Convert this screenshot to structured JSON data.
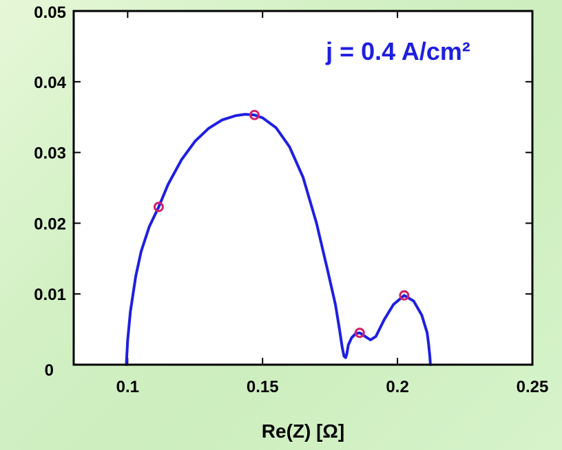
{
  "chart_data": {
    "type": "line",
    "xlabel": "Re(Z) [Ω]",
    "ylabel": "",
    "xlim": [
      0.08,
      0.25
    ],
    "ylim": [
      0,
      0.05
    ],
    "x_ticks": [
      0.1,
      0.15,
      0.2,
      0.25
    ],
    "x_tick_labels": [
      "0.1",
      "0.15",
      "0.2",
      "0.25"
    ],
    "y_ticks": [
      0,
      0.01,
      0.02,
      0.03,
      0.04,
      0.05
    ],
    "y_tick_labels": [
      "0",
      "0.01",
      "0.02",
      "0.03",
      "0.04",
      "0.05"
    ],
    "annotation": "j = 0.4 A/cm²",
    "grid": false,
    "colors": {
      "line": "#1f1fe0",
      "marker": "#d0206a",
      "annotation": "#1f1fe0",
      "plot_bg": "#ffffff",
      "axis": "#000000"
    },
    "series": [
      {
        "x": [
          0.0995,
          0.1,
          0.101,
          0.103,
          0.105,
          0.108,
          0.1115,
          0.115,
          0.12,
          0.125,
          0.13,
          0.135,
          0.14,
          0.1435,
          0.147,
          0.15,
          0.155,
          0.16,
          0.165,
          0.17,
          0.174,
          0.177,
          0.1785,
          0.1795,
          0.1802,
          0.1808,
          0.1812,
          0.1818,
          0.183,
          0.1845,
          0.186,
          0.188,
          0.19,
          0.192,
          0.195,
          0.1985,
          0.2025,
          0.206,
          0.209,
          0.211,
          0.2115,
          0.212,
          0.2122
        ],
        "y": [
          0,
          0.0035,
          0.0075,
          0.0125,
          0.016,
          0.0195,
          0.0223,
          0.0255,
          0.029,
          0.0316,
          0.0334,
          0.0346,
          0.0352,
          0.0354,
          0.0353,
          0.0349,
          0.0335,
          0.0308,
          0.0265,
          0.02,
          0.0135,
          0.0085,
          0.005,
          0.0025,
          0.0012,
          0.001,
          0.0015,
          0.0028,
          0.0038,
          0.0044,
          0.0045,
          0.004,
          0.0035,
          0.004,
          0.0063,
          0.0085,
          0.0098,
          0.009,
          0.007,
          0.0045,
          0.003,
          0.0012,
          0
        ]
      }
    ],
    "markers": [
      {
        "x": 0.1115,
        "y": 0.0223
      },
      {
        "x": 0.147,
        "y": 0.0353
      },
      {
        "x": 0.186,
        "y": 0.0045
      },
      {
        "x": 0.2025,
        "y": 0.0098
      }
    ]
  }
}
